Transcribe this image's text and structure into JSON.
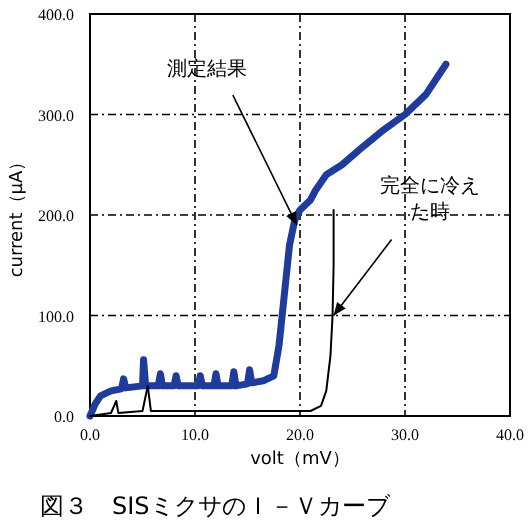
{
  "chart_data": {
    "type": "line",
    "title": "図３　SISミクサのＩ－Ｖカーブ",
    "xlabel": "volt（mV）",
    "ylabel": "current（μA）",
    "xlim": [
      0,
      40
    ],
    "xticks": [
      {
        "value": 0,
        "label": "0.0"
      },
      {
        "value": 10,
        "label": "10.0"
      },
      {
        "value": 20,
        "label": "20.0"
      },
      {
        "value": 30,
        "label": "30.0"
      },
      {
        "value": 40,
        "label": "40.0"
      }
    ],
    "ylim": [
      0,
      400
    ],
    "yticks": [
      {
        "value": 0,
        "label": "0.0"
      },
      {
        "value": 100,
        "label": "100.0"
      },
      {
        "value": 200,
        "label": "200.0"
      },
      {
        "value": 300,
        "label": "300.0"
      },
      {
        "value": 400,
        "label": "400.0"
      }
    ],
    "grid": true,
    "line_style": "solid",
    "marker": "none",
    "series": [
      {
        "color": "#1f3c9c",
        "x": [
          0,
          0.5,
          1,
          2,
          3,
          3.2,
          3.4,
          5,
          5.1,
          5.3,
          6.5,
          6.7,
          6.9,
          8,
          8.2,
          8.4,
          10.3,
          10.5,
          10.7,
          11.8,
          12,
          12.2,
          13.5,
          13.7,
          13.9,
          15,
          15.2,
          15.4,
          16.5,
          17.5,
          18,
          18.5,
          19,
          19.5,
          20,
          21,
          21.5,
          22.5,
          24,
          26,
          28,
          30,
          32,
          33.9
        ],
        "values": [
          0,
          12,
          20,
          25,
          27,
          37,
          28,
          30,
          56,
          30,
          30,
          42,
          30,
          30,
          40,
          30,
          30,
          40,
          30,
          30,
          42,
          30,
          30,
          44,
          30,
          32,
          46,
          33,
          35,
          40,
          70,
          120,
          170,
          195,
          205,
          215,
          225,
          240,
          250,
          268,
          285,
          300,
          320,
          350
        ]
      },
      {
        "color": "#000000",
        "x": [
          0,
          2,
          2.5,
          2.7,
          5,
          5.5,
          5.8,
          10,
          15,
          21,
          22,
          22.5,
          22.9,
          23.1,
          23.2,
          23.2
        ],
        "values": [
          0,
          3,
          15,
          3,
          5,
          30,
          5,
          5,
          5,
          5,
          10,
          25,
          60,
          100,
          150,
          205
        ]
      }
    ],
    "annotations": [
      {
        "text": "測定結果",
        "x": 19.7,
        "y": 190
      },
      {
        "text": "完全に冷えた時",
        "x": 23.2,
        "y": 100
      }
    ]
  }
}
